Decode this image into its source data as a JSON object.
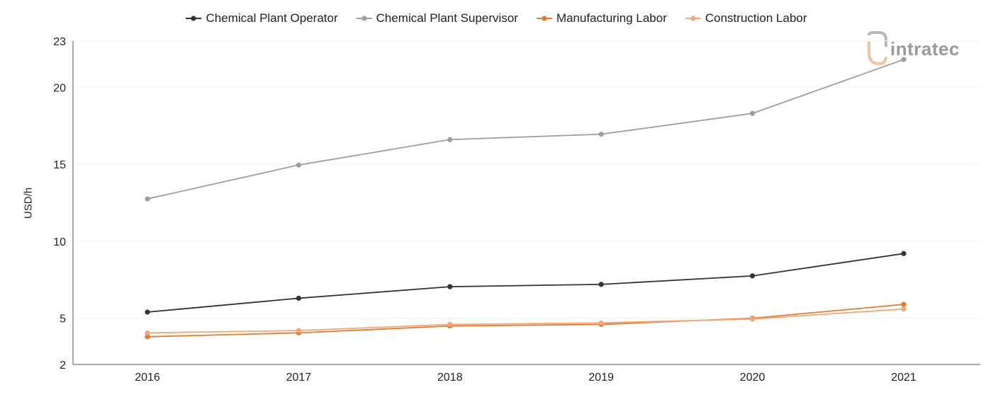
{
  "brand": {
    "logo_text": "intratec"
  },
  "chart_data": {
    "type": "line",
    "categories": [
      "2016",
      "2017",
      "2018",
      "2019",
      "2020",
      "2021"
    ],
    "ylabel": "USD/h",
    "xlabel": "",
    "ylim": [
      2,
      23
    ],
    "yticks": [
      2,
      5,
      10,
      15,
      20,
      23
    ],
    "grid": "horizontal",
    "legend_position": "top-center",
    "series": [
      {
        "name": "Chemical Plant Operator",
        "color": "#333333",
        "values": [
          5.4,
          6.3,
          7.05,
          7.2,
          7.75,
          9.2
        ]
      },
      {
        "name": "Chemical Plant Supervisor",
        "color": "#9e9e9e",
        "values": [
          12.75,
          14.95,
          16.6,
          16.95,
          18.3,
          21.8
        ]
      },
      {
        "name": "Manufacturing Labor",
        "color": "#e07b33",
        "values": [
          3.8,
          4.05,
          4.5,
          4.6,
          5.0,
          5.9
        ]
      },
      {
        "name": "Construction Labor",
        "color": "#f0a878",
        "values": [
          4.05,
          4.2,
          4.6,
          4.7,
          4.95,
          5.6
        ]
      }
    ]
  }
}
